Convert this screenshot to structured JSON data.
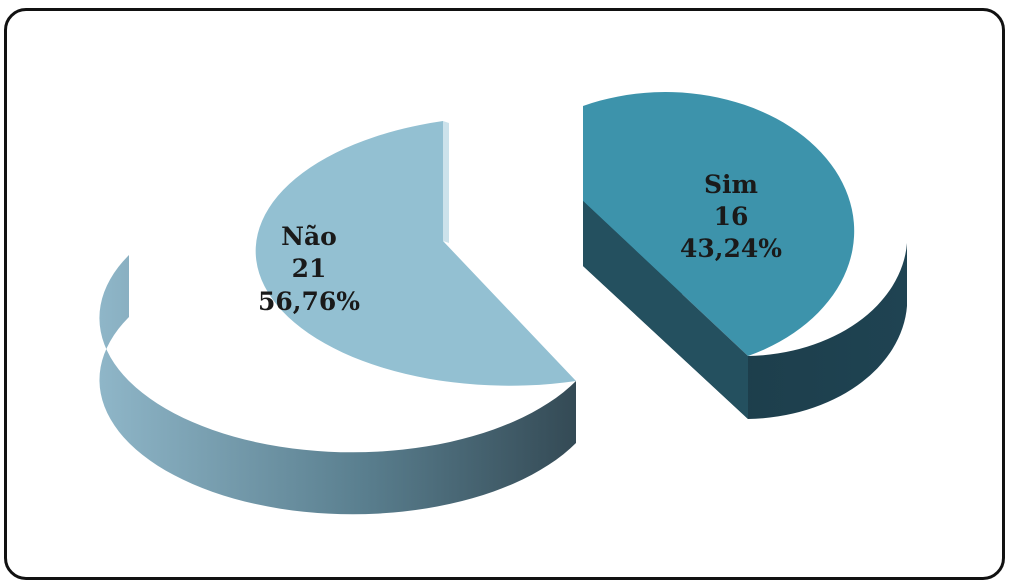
{
  "chart_data": {
    "type": "pie",
    "title": "",
    "legend": "none",
    "slices": [
      {
        "name": "Sim",
        "value": 16,
        "percent": "43,24%",
        "label_value": "16",
        "color": "#3d93ab",
        "side_color": "#1d3d4a"
      },
      {
        "name": "Não",
        "value": 21,
        "percent": "56,76%",
        "label_value": "21",
        "color": "#93c0d2",
        "side_color": "#6c99ab"
      }
    ]
  }
}
